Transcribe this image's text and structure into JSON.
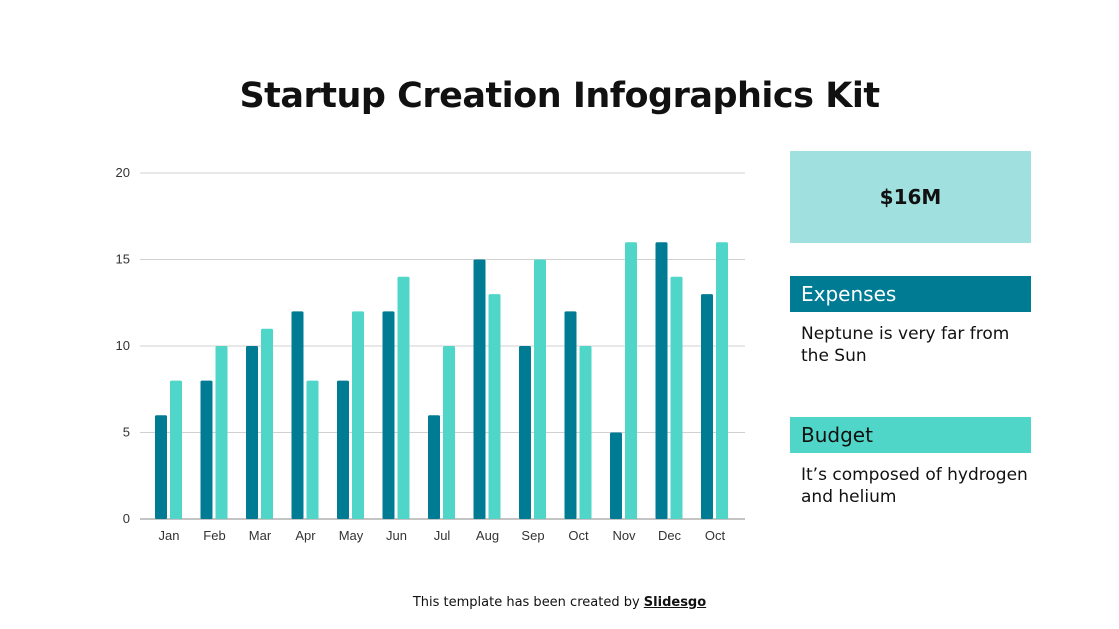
{
  "title": "Startup Creation Infographics Kit",
  "chart_data": {
    "type": "bar",
    "categories": [
      "Jan",
      "Feb",
      "Mar",
      "Apr",
      "May",
      "Jun",
      "Jul",
      "Aug",
      "Sep",
      "Oct",
      "Nov",
      "Dec",
      "Oct"
    ],
    "series": [
      {
        "values": [
          6,
          8,
          10,
          12,
          8,
          12,
          6,
          15,
          10,
          12,
          5,
          16,
          13
        ],
        "color": "#007b94"
      },
      {
        "values": [
          8,
          10,
          11,
          8,
          12,
          14,
          10,
          13,
          15,
          10,
          16,
          14,
          16
        ],
        "color": "#4fd6c9"
      }
    ],
    "ylim": [
      0,
      20
    ],
    "yticks": [
      0,
      5,
      10,
      15,
      20
    ],
    "grid": true
  },
  "stat": {
    "value": "$16M"
  },
  "expenses": {
    "label": "Expenses",
    "text": "Neptune is very far from the Sun"
  },
  "budget": {
    "label": "Budget",
    "text": "It’s composed of hydrogen and helium"
  },
  "footer": {
    "text": "This template has been created by ",
    "brand": "Slidesgo"
  }
}
